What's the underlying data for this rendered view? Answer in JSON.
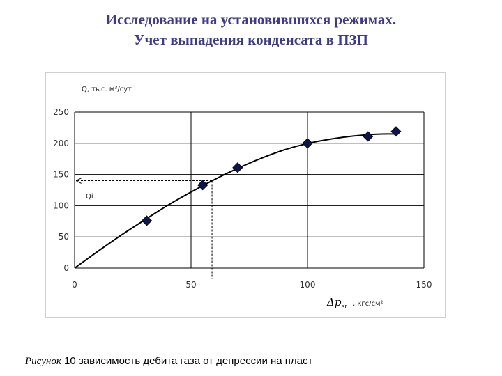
{
  "slide": {
    "title_line1": "Исследование на установившихся режимах.",
    "title_line2": "Учет выпадения конденсата в ПЗП"
  },
  "caption": {
    "word": "Рисунок",
    "rest": " 10 зависимость дебита газа от депрессии на пласт"
  },
  "chart_data": {
    "type": "scatter",
    "ylabel": "Q, тыс. м³/сут",
    "xlabel_symbol": "Δp",
    "xlabel_sub": "зi",
    "xlabel_unit": ", кгс/см²",
    "annotation": "Qi",
    "xlim": [
      0,
      150
    ],
    "ylim": [
      0,
      250
    ],
    "x_ticks": [
      0,
      50,
      100,
      150
    ],
    "y_ticks": [
      0,
      50,
      100,
      150,
      200,
      250
    ],
    "grid": true,
    "points": [
      {
        "x": 31,
        "y": 76
      },
      {
        "x": 55,
        "y": 133
      },
      {
        "x": 70,
        "y": 161
      },
      {
        "x": 100,
        "y": 200
      },
      {
        "x": 126,
        "y": 211
      },
      {
        "x": 138,
        "y": 219
      }
    ],
    "trend_curve": [
      [
        0,
        0
      ],
      [
        10,
        27
      ],
      [
        20,
        53
      ],
      [
        30,
        77
      ],
      [
        40,
        101
      ],
      [
        50,
        122
      ],
      [
        60,
        142
      ],
      [
        70,
        160
      ],
      [
        80,
        176
      ],
      [
        90,
        190
      ],
      [
        100,
        200
      ],
      [
        110,
        207
      ],
      [
        120,
        212
      ],
      [
        130,
        215
      ],
      [
        138,
        215
      ]
    ],
    "reference": {
      "x": 59,
      "y": 140
    },
    "marker_color": "#0d1550"
  }
}
